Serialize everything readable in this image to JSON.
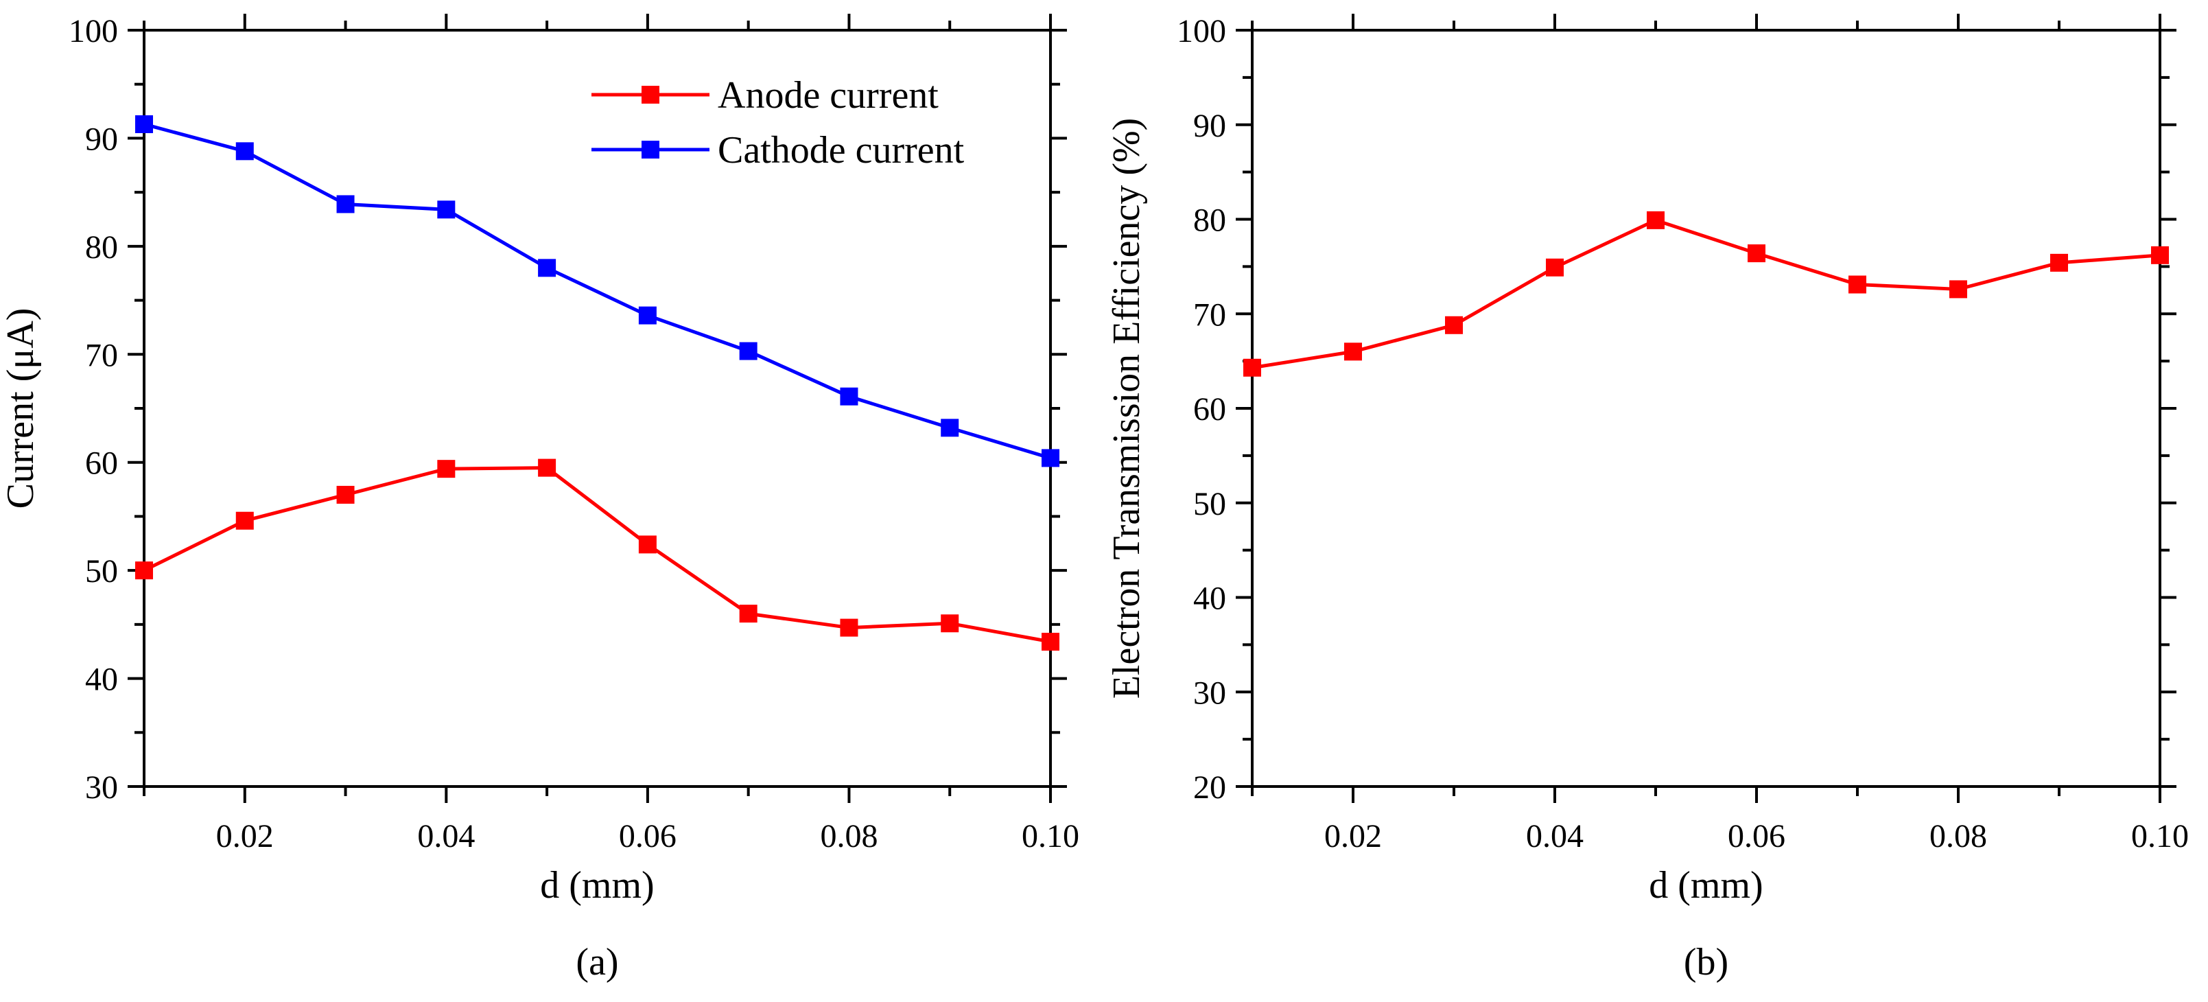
{
  "chart_data": [
    {
      "type": "line",
      "panel_label": "(a)",
      "xlabel": "d (mm)",
      "ylabel": "Current (μA)",
      "xlim": [
        0.01,
        0.1
      ],
      "ylim": [
        30,
        100
      ],
      "x_ticks": [
        0.02,
        0.04,
        0.06,
        0.08,
        0.1
      ],
      "x_tick_labels": [
        "0.02",
        "0.04",
        "0.06",
        "0.08",
        "0.10"
      ],
      "x_minor_ticks": [
        0.01,
        0.03,
        0.05,
        0.07,
        0.09
      ],
      "y_ticks": [
        30,
        40,
        50,
        60,
        70,
        80,
        90,
        100
      ],
      "y_tick_labels": [
        "30",
        "40",
        "50",
        "60",
        "70",
        "80",
        "90",
        "100"
      ],
      "y_minor_ticks": [
        35,
        45,
        55,
        65,
        75,
        85,
        95
      ],
      "legend_position": "top-right",
      "x": [
        0.01,
        0.02,
        0.03,
        0.04,
        0.05,
        0.06,
        0.07,
        0.08,
        0.09,
        0.1
      ],
      "series": [
        {
          "name": "Anode current",
          "color": "#ff0000",
          "marker": "square",
          "values": [
            50.0,
            54.6,
            57.0,
            59.4,
            59.5,
            52.4,
            46.0,
            44.7,
            45.1,
            43.4
          ]
        },
        {
          "name": "Cathode current",
          "color": "#0000ff",
          "marker": "square",
          "values": [
            91.3,
            88.8,
            83.9,
            83.4,
            78.0,
            73.6,
            70.3,
            66.1,
            63.2,
            60.4
          ]
        }
      ]
    },
    {
      "type": "line",
      "panel_label": "(b)",
      "xlabel": "d (mm)",
      "ylabel": "Electron Transmission Efficiency (%)",
      "xlim": [
        0.01,
        0.1
      ],
      "ylim": [
        20,
        100
      ],
      "x_ticks": [
        0.02,
        0.04,
        0.06,
        0.08,
        0.1
      ],
      "x_tick_labels": [
        "0.02",
        "0.04",
        "0.06",
        "0.08",
        "0.10"
      ],
      "x_minor_ticks": [
        0.01,
        0.03,
        0.05,
        0.07,
        0.09
      ],
      "y_ticks": [
        20,
        30,
        40,
        50,
        60,
        70,
        80,
        90,
        100
      ],
      "y_tick_labels": [
        "20",
        "30",
        "40",
        "50",
        "60",
        "70",
        "80",
        "90",
        "100"
      ],
      "y_minor_ticks": [
        25,
        35,
        45,
        55,
        65,
        75,
        85,
        95
      ],
      "x": [
        0.01,
        0.02,
        0.03,
        0.04,
        0.05,
        0.06,
        0.07,
        0.08,
        0.09,
        0.1
      ],
      "series": [
        {
          "name": "Electron Transmission Efficiency",
          "color": "#ff0000",
          "marker": "square",
          "values": [
            64.3,
            66.0,
            68.8,
            74.9,
            79.9,
            76.4,
            73.1,
            72.6,
            75.4,
            76.2
          ]
        }
      ]
    }
  ]
}
